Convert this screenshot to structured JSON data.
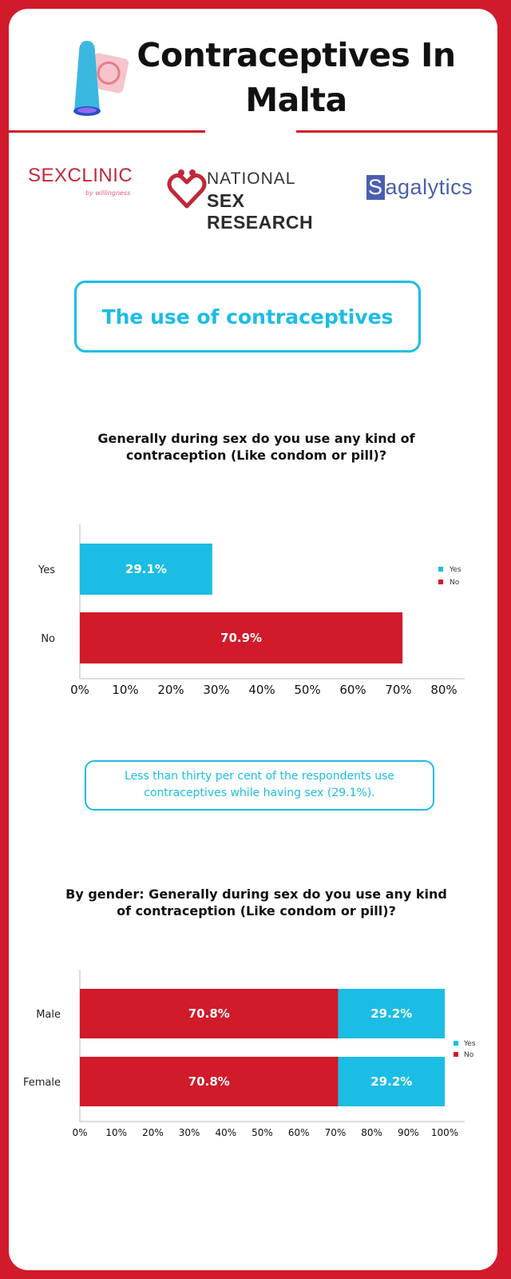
{
  "header": {
    "title": "Contraceptives In Malta",
    "icon": "condom-icon"
  },
  "logos": {
    "sexclinic": {
      "part1": "SEX",
      "part2": "CLINIC",
      "sub": "by willingness"
    },
    "nsr": {
      "line1": "NATIONAL",
      "line2": "SEX RESEARCH"
    },
    "sagalytics": {
      "first": "S",
      "rest": "agalytics"
    }
  },
  "section": {
    "heading": "The use of contraceptives"
  },
  "chart1": {
    "title": "Generally during sex do you use any kind of contraception (Like condom or pill)?"
  },
  "note": {
    "text": "Less than thirty per cent of the respondents use contraceptives while having sex (29.1%)."
  },
  "chart2": {
    "title": "By gender: Generally during sex do you use any kind of contraception (Like condom or pill)?"
  },
  "colors": {
    "yes": "#1bbde4",
    "no": "#d11a2a"
  },
  "chart_data": [
    {
      "type": "bar",
      "orientation": "horizontal",
      "title": "Generally during sex do you use any kind of contraception (Like condom or pill)?",
      "categories": [
        "Yes",
        "No"
      ],
      "values": [
        29.1,
        70.9
      ],
      "value_labels": [
        "29.1%",
        "70.9%"
      ],
      "xlim": [
        0,
        80
      ],
      "xticks": [
        "0%",
        "10%",
        "20%",
        "30%",
        "40%",
        "50%",
        "60%",
        "70%",
        "80%"
      ],
      "legend": {
        "entries": [
          "Yes",
          "No"
        ],
        "placement": "right"
      }
    },
    {
      "type": "bar",
      "orientation": "horizontal",
      "stacked": true,
      "title": "By gender: Generally during sex do you use any kind of contraception (Like condom or pill)?",
      "categories": [
        "Male",
        "Female"
      ],
      "series": [
        {
          "name": "No",
          "values": [
            70.8,
            70.8
          ],
          "labels": [
            "70.8%",
            "70.8%"
          ]
        },
        {
          "name": "Yes",
          "values": [
            29.2,
            29.2
          ],
          "labels": [
            "29.2%",
            "29.2%"
          ]
        }
      ],
      "xlim": [
        0,
        100
      ],
      "xticks": [
        "0%",
        "10%",
        "20%",
        "30%",
        "40%",
        "50%",
        "60%",
        "70%",
        "80%",
        "90%",
        "100%"
      ],
      "legend": {
        "entries": [
          "Yes",
          "No"
        ],
        "placement": "right"
      }
    }
  ]
}
